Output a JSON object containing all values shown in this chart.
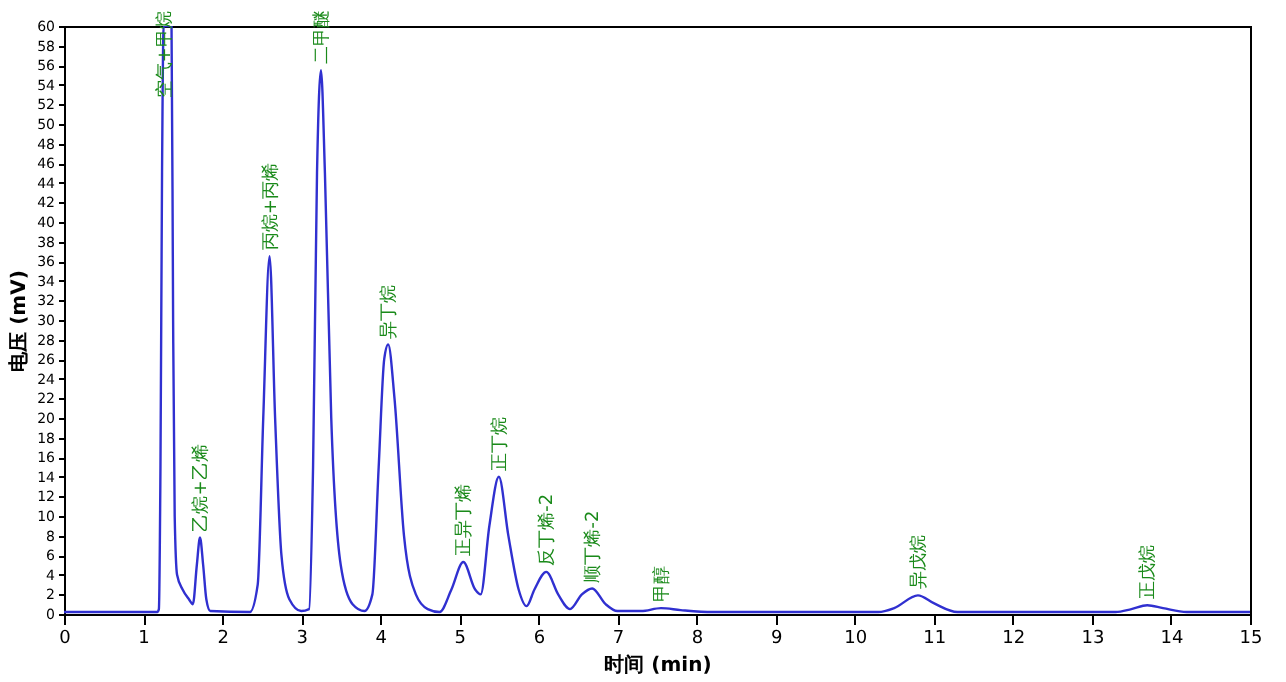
{
  "chart_data": {
    "type": "line",
    "xlabel": "时间 (min)",
    "ylabel": "电压 (mV)",
    "x": [
      0,
      1.18,
      1.2,
      1.22,
      1.24,
      1.26,
      1.36,
      1.38,
      1.4,
      1.43,
      1.5,
      1.58,
      1.63,
      1.68,
      1.72,
      1.76,
      1.8,
      1.85,
      2.35,
      2.45,
      2.52,
      2.6,
      2.67,
      2.75,
      2.85,
      3.0,
      3.1,
      3.15,
      3.2,
      3.25,
      3.3,
      3.38,
      3.5,
      3.65,
      3.8,
      3.9,
      3.98,
      4.05,
      4.1,
      4.18,
      4.3,
      4.45,
      4.6,
      4.75,
      4.9,
      5.05,
      5.2,
      5.27,
      5.38,
      5.5,
      5.62,
      5.75,
      5.85,
      5.95,
      6.1,
      6.25,
      6.4,
      6.55,
      6.68,
      6.85,
      7.0,
      7.3,
      7.55,
      7.8,
      8.2,
      10.3,
      10.5,
      10.8,
      11.0,
      11.3,
      13.3,
      13.5,
      13.7,
      13.9,
      14.2,
      15
    ],
    "series": [
      {
        "color": "#3030d0",
        "values": [
          0.2,
          0.2,
          0.5,
          15,
          45,
          60,
          60,
          30,
          10,
          4,
          2.5,
          1.5,
          1,
          5,
          7.8,
          5,
          1.5,
          0.3,
          0.2,
          3,
          20,
          36.5,
          20,
          6,
          1.5,
          0.3,
          0.5,
          15,
          45,
          55.5,
          45,
          20,
          5,
          1,
          0.3,
          2,
          15,
          26,
          27.5,
          22,
          8,
          2,
          0.5,
          0.2,
          2.5,
          5.3,
          2.5,
          2,
          9,
          14,
          8,
          2.5,
          0.8,
          2.5,
          4.3,
          2,
          0.5,
          2,
          2.6,
          1,
          0.3,
          0.3,
          0.6,
          0.4,
          0.2,
          0.2,
          0.6,
          1.9,
          1.1,
          0.2,
          0.2,
          0.5,
          0.9,
          0.6,
          0.2,
          0.2
        ]
      }
    ],
    "xlim": [
      0,
      15
    ],
    "xticks": [
      0,
      1,
      2,
      3,
      4,
      5,
      6,
      7,
      8,
      9,
      10,
      11,
      12,
      13,
      14,
      15
    ],
    "ylim": [
      0,
      60
    ],
    "yticks": [
      0,
      2,
      4,
      6,
      8,
      10,
      12,
      14,
      16,
      18,
      20,
      22,
      24,
      26,
      28,
      30,
      32,
      34,
      36,
      38,
      40,
      42,
      44,
      46,
      48,
      50,
      52,
      54,
      56,
      58,
      60
    ],
    "grid": false,
    "line_style": "solid",
    "annotations": [
      {
        "text": "空气+甲烷",
        "x": 1.26,
        "y": 52
      },
      {
        "text": "乙烷+乙烯",
        "x": 1.72,
        "y": 7.8
      },
      {
        "text": "丙烷+丙烯",
        "x": 2.6,
        "y": 36.5
      },
      {
        "text": "二甲醚",
        "x": 3.25,
        "y": 55.5
      },
      {
        "text": "异丁烷",
        "x": 4.1,
        "y": 27.5
      },
      {
        "text": "正异丁烯",
        "x": 5.05,
        "y": 5.3
      },
      {
        "text": "正丁烷",
        "x": 5.5,
        "y": 14
      },
      {
        "text": "反丁烯-2",
        "x": 6.1,
        "y": 4.3
      },
      {
        "text": "顺丁烯-2",
        "x": 6.68,
        "y": 2.6
      },
      {
        "text": "甲醇",
        "x": 7.55,
        "y": 0.6
      },
      {
        "text": "异戊烷",
        "x": 10.8,
        "y": 1.9
      },
      {
        "text": "正戊烷",
        "x": 13.7,
        "y": 0.9
      }
    ]
  }
}
